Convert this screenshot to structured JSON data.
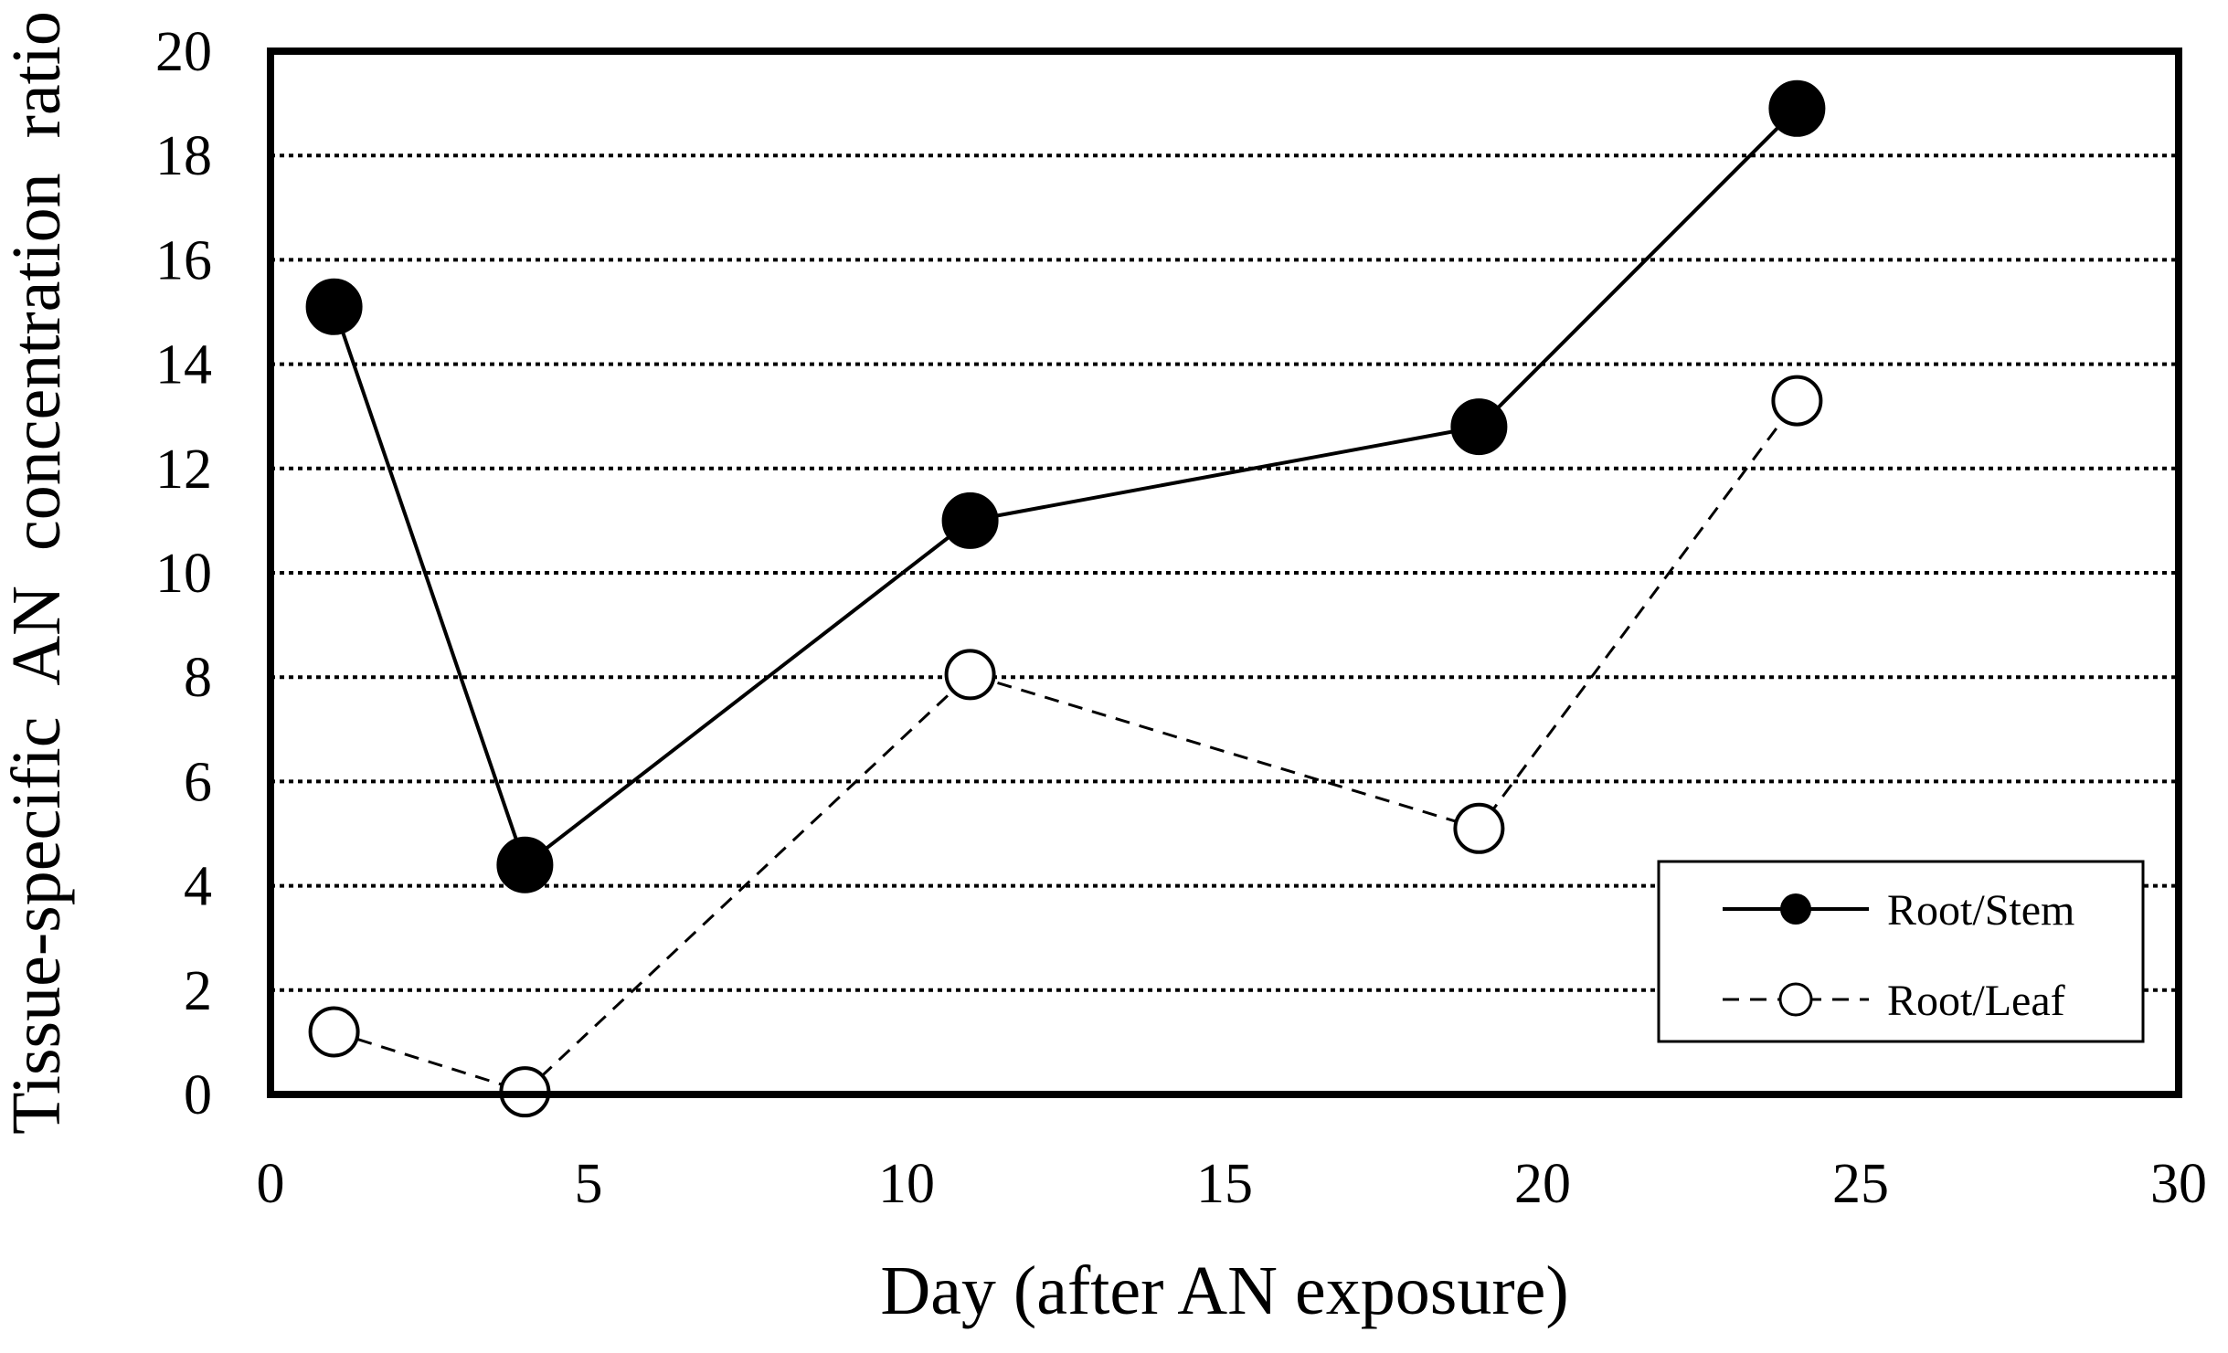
{
  "chart_data": {
    "type": "line",
    "title": "",
    "xlabel": "Day (after AN exposure)",
    "ylabel": "Tissue-specific  AN  concentration  ratio",
    "xlim": [
      0,
      30
    ],
    "ylim": [
      0,
      20
    ],
    "xticks": [
      0,
      5,
      10,
      15,
      20,
      25,
      30
    ],
    "yticks": [
      0,
      2,
      4,
      6,
      8,
      10,
      12,
      14,
      16,
      18,
      20
    ],
    "grid": "horizontal dotted",
    "legend_position": "bottom-right",
    "series": [
      {
        "name": "Root/Stem",
        "marker": "filled-circle",
        "line": "solid",
        "x": [
          1,
          4,
          11,
          19,
          24
        ],
        "y": [
          15.1,
          4.4,
          11.0,
          12.8,
          18.9
        ]
      },
      {
        "name": "Root/Leaf",
        "marker": "open-circle",
        "line": "dashed",
        "x": [
          1,
          4,
          11,
          19,
          24
        ],
        "y": [
          1.2,
          0.05,
          8.05,
          5.1,
          13.3
        ]
      }
    ]
  }
}
